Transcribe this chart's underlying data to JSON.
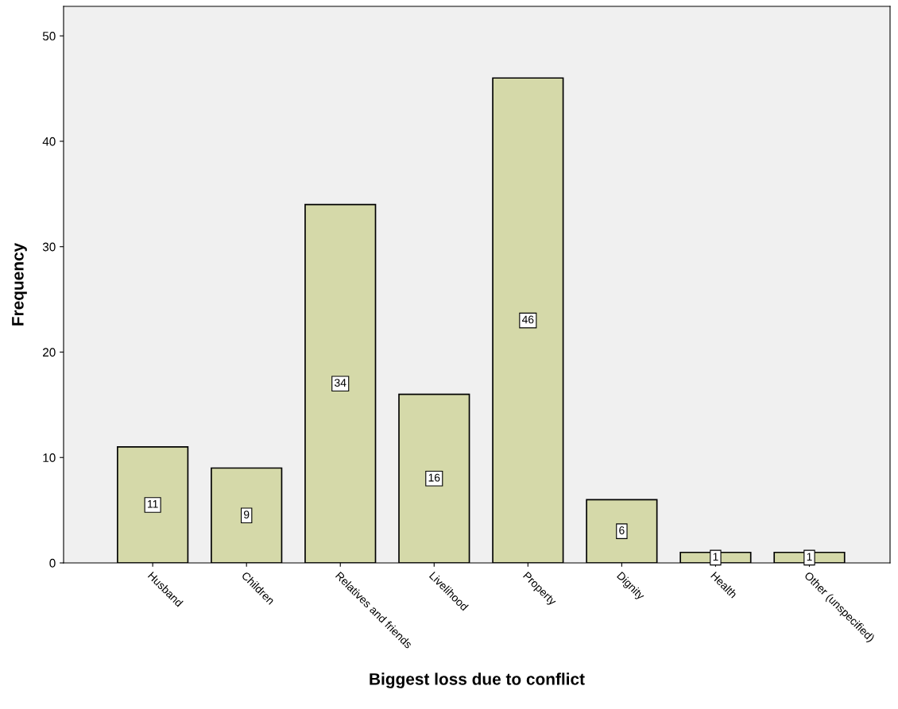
{
  "chart_data": {
    "type": "bar",
    "xlabel": "Biggest loss due to conflict",
    "ylabel": "Frequency",
    "categories": [
      "Husband",
      "Children",
      "Relatives and friends",
      "Livelihood",
      "Property",
      "Dignity",
      "Health",
      "Other (unspecified)"
    ],
    "values": [
      11,
      9,
      34,
      16,
      46,
      6,
      1,
      1
    ],
    "color": "#d5d9a9",
    "ylim": [
      0,
      52.8
    ],
    "yticks": [
      0,
      10,
      20,
      30,
      40,
      50
    ],
    "data_labels": true,
    "grid": false,
    "legend": false
  }
}
